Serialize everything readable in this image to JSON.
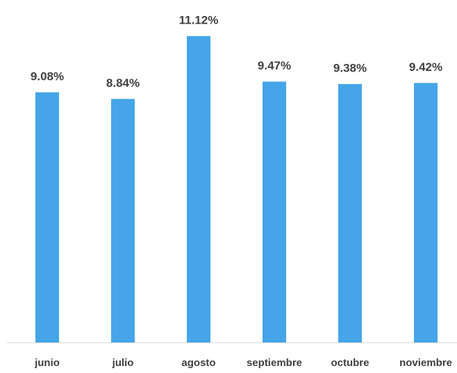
{
  "chart_data": {
    "type": "bar",
    "categories": [
      "junio",
      "julio",
      "agosto",
      "septiembre",
      "octubre",
      "noviembre"
    ],
    "values": [
      9.08,
      8.84,
      11.12,
      9.47,
      9.38,
      9.42
    ],
    "value_labels": [
      "9.08%",
      "8.84%",
      "11.12%",
      "9.47%",
      "9.38%",
      "9.42%"
    ],
    "color": "#45a5e8"
  }
}
